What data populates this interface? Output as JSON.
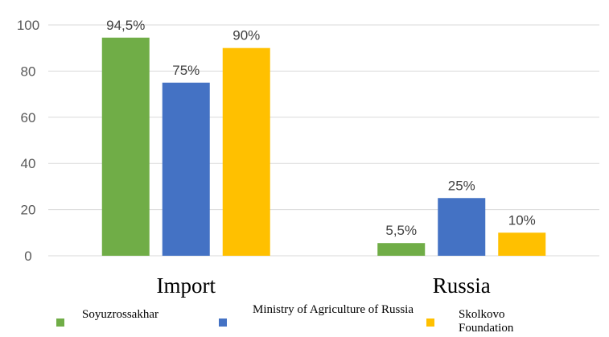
{
  "chart_data": {
    "type": "bar",
    "categories": [
      "Import",
      "Russia"
    ],
    "series": [
      {
        "name": "Soyuzrossakhar",
        "values": [
          94.5,
          5.5
        ],
        "labels": [
          "94,5%",
          "5,5%"
        ],
        "color": "#70ad47"
      },
      {
        "name": "Ministry of Agriculture of Russia",
        "values": [
          75,
          25
        ],
        "labels": [
          "75%",
          "25%"
        ],
        "color": "#4472c4"
      },
      {
        "name": "Skolkovo Foundation",
        "values": [
          90,
          10
        ],
        "labels": [
          "90%",
          "10%"
        ],
        "color": "#ffc000"
      }
    ],
    "ylim": [
      0,
      100
    ],
    "yticks": [
      0,
      20,
      40,
      60,
      80,
      100
    ],
    "grid": true,
    "legend": "bottom"
  }
}
